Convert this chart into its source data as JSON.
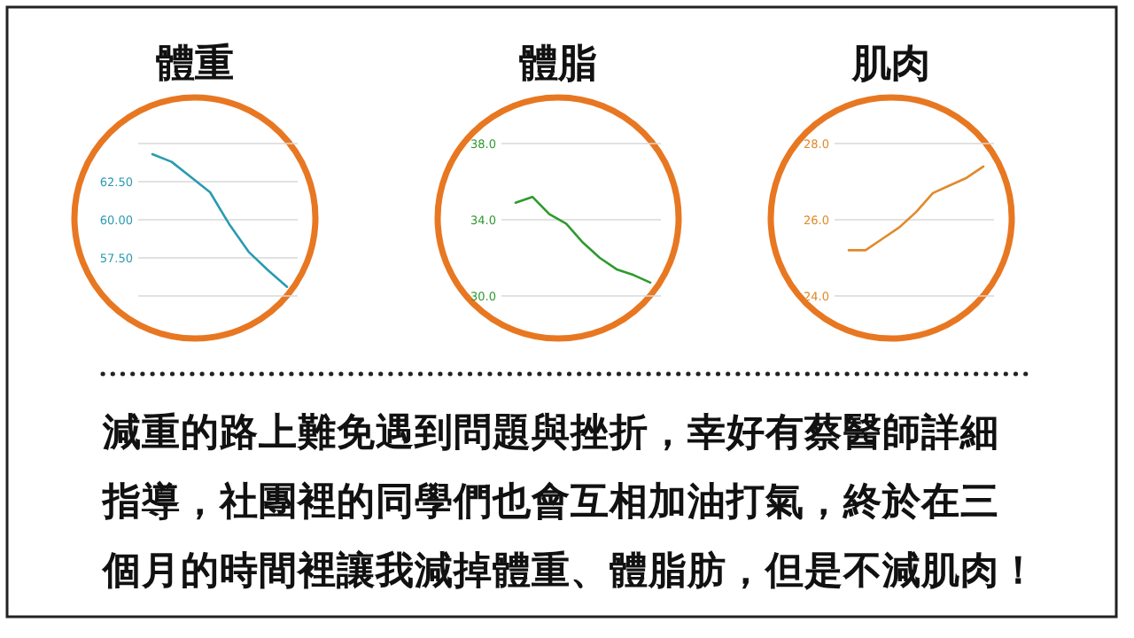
{
  "chart_data": [
    {
      "type": "line",
      "title": "體重",
      "categories": [
        null,
        null,
        null,
        null,
        null,
        null,
        null,
        null
      ],
      "series": [
        {
          "color": "#2a9bb0",
          "values": [
            64.3,
            63.8,
            62.8,
            61.8,
            59.7,
            57.9,
            56.7,
            55.6
          ]
        }
      ],
      "ylim": [
        55,
        65
      ],
      "yticks": [
        {
          "value": 55,
          "label": null
        },
        {
          "value": 57.5,
          "label": "57.50"
        },
        {
          "value": 60,
          "label": "60.00"
        },
        {
          "value": 62.5,
          "label": "62.50"
        },
        {
          "value": 65,
          "label": null
        }
      ],
      "grid": "y"
    },
    {
      "type": "line",
      "title": "體脂",
      "categories": [
        null,
        null,
        null,
        null,
        null,
        null,
        null,
        null,
        null
      ],
      "series": [
        {
          "color": "#2e9a2e",
          "values": [
            34.9,
            35.2,
            34.3,
            33.8,
            32.8,
            32.0,
            31.4,
            31.1,
            30.7
          ]
        }
      ],
      "ylim": [
        30,
        38
      ],
      "yticks": [
        {
          "value": 30,
          "label": "30.0"
        },
        {
          "value": 34,
          "label": "34.0"
        },
        {
          "value": 38,
          "label": "38.0"
        }
      ],
      "grid": "y"
    },
    {
      "type": "line",
      "title": "肌肉",
      "categories": [
        null,
        null,
        null,
        null,
        null,
        null,
        null,
        null,
        null
      ],
      "series": [
        {
          "color": "#e08a2a",
          "values": [
            25.2,
            25.2,
            25.5,
            25.8,
            26.2,
            26.7,
            26.9,
            27.1,
            27.4
          ]
        }
      ],
      "ylim": [
        24,
        28
      ],
      "yticks": [
        {
          "value": 24,
          "label": "24.0"
        },
        {
          "value": 26,
          "label": "26.0"
        },
        {
          "value": 28,
          "label": "28.0"
        }
      ],
      "grid": "y"
    },
    {
      "type": "other",
      "annotations": [
        "減重的路上難免遇到問題與挫折，幸好有蔡醫師詳細",
        "指導，社團裡的同學們也會互相加油打氣，終於在三",
        "個月的時間裡讓我減掉體重、體脂肪，但是不減肌肉！"
      ]
    }
  ]
}
